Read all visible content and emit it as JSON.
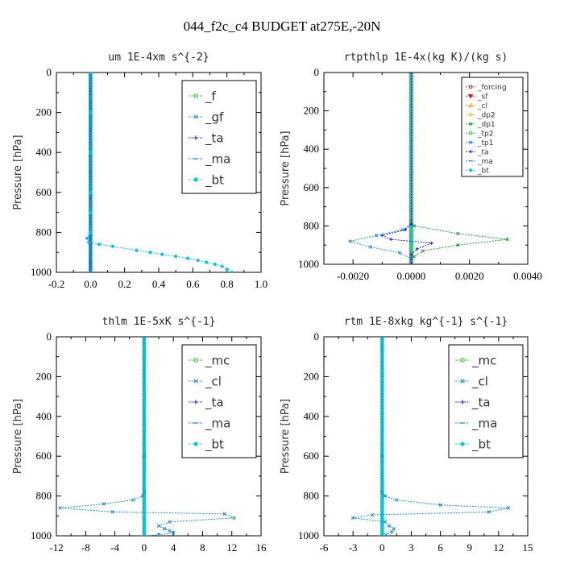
{
  "title": "044_f2c_c4  BUDGET at275E,-20N",
  "colors": {
    "forcing": "#d62020",
    "sf": "#d62020",
    "cl_orange": "#f0a020",
    "dp2": "#e0c000",
    "dp1": "#20a040",
    "tp2": "#30c030",
    "tp1": "#1e90d0",
    "ta": "#2020e0",
    "ma": "#2090c0",
    "bt": "#00c8e0",
    "f": "#30c030",
    "gf": "#1e90d0",
    "mc": "#30c030",
    "cl_blue": "#1e90d0"
  },
  "chart_data": [
    {
      "type": "line",
      "title": "um  1E-4xm s^{-2}",
      "ylabel": "Pressure [hPa]",
      "xlim": [
        -0.2,
        1.0
      ],
      "ylim": [
        1000,
        0
      ],
      "xticks": [
        "-0.2",
        "0.0",
        "0.2",
        "0.4",
        "0.6",
        "0.8",
        "1.0"
      ],
      "xtick_values": [
        -0.2,
        0.0,
        0.2,
        0.4,
        0.6,
        0.8,
        1.0
      ],
      "yticks": [
        "0",
        "200",
        "400",
        "600",
        "800",
        "1000"
      ],
      "ytick_values": [
        0,
        200,
        400,
        600,
        800,
        1000
      ],
      "legend_position": "top-right",
      "legend_size": "large",
      "series": [
        {
          "name": "_f",
          "color_key": "f",
          "marker": "circle",
          "points": "zeros"
        },
        {
          "name": "_gf",
          "color_key": "gf",
          "marker": "x",
          "points": "zeros"
        },
        {
          "name": "_ta",
          "color_key": "ta",
          "marker": "plus",
          "points": "zeros"
        },
        {
          "name": "_ma",
          "color_key": "ma",
          "marker": "dash",
          "points": "zeros"
        },
        {
          "name": "_bt",
          "color_key": "bt",
          "marker": "diamond",
          "x": [
            0,
            0,
            0,
            0,
            0,
            0,
            -0.02,
            -0.01,
            0.05,
            0.13,
            0.27,
            0.35,
            0.42,
            0.5,
            0.57,
            0.63,
            0.68,
            0.73,
            0.77,
            0.8,
            0.83
          ],
          "y": [
            0,
            200,
            400,
            600,
            700,
            800,
            830,
            850,
            860,
            870,
            890,
            900,
            910,
            920,
            930,
            940,
            950,
            960,
            970,
            985,
            1000
          ]
        }
      ]
    },
    {
      "type": "line",
      "title": "rtpthlp  1E-4x(kg K)/(kg s)",
      "ylabel": "Pressure [hPa]",
      "xlim": [
        -0.003,
        0.004
      ],
      "ylim": [
        1000,
        0
      ],
      "xticks": [
        "-0.0020",
        "0.0000",
        "0.0020",
        "0.0040"
      ],
      "xtick_values": [
        -0.002,
        0.0,
        0.002,
        0.004
      ],
      "yticks": [
        "0",
        "200",
        "400",
        "600",
        "800",
        "1000"
      ],
      "ytick_values": [
        0,
        200,
        400,
        600,
        800,
        1000
      ],
      "legend_position": "top-right",
      "legend_size": "small",
      "series": [
        {
          "name": "_forcing",
          "color_key": "forcing",
          "marker": "circle",
          "points": "zeros"
        },
        {
          "name": "_sf",
          "color_key": "sf",
          "marker": "tri-down",
          "points": "zeros"
        },
        {
          "name": "_cl",
          "color_key": "cl_orange",
          "marker": "tri-up",
          "points": "zeros"
        },
        {
          "name": "_dp2",
          "color_key": "dp2",
          "marker": "circle",
          "points": "zeros"
        },
        {
          "name": "_dp1",
          "color_key": "dp1",
          "marker": "x",
          "x": [
            0,
            0,
            0.0001,
            0.0016,
            0.0033,
            0.0016,
            0.0004,
            0.0001,
            0,
            0
          ],
          "y": [
            0,
            780,
            800,
            840,
            870,
            900,
            930,
            960,
            980,
            1000
          ]
        },
        {
          "name": "_tp2",
          "color_key": "tp2",
          "marker": "circle",
          "points": "zeros"
        },
        {
          "name": "_tp1",
          "color_key": "tp1",
          "marker": "x",
          "x": [
            0,
            0,
            -0.0003,
            -0.0012,
            -0.0021,
            -0.0014,
            -0.0004,
            0,
            0
          ],
          "y": [
            0,
            790,
            820,
            850,
            880,
            910,
            940,
            970,
            1000
          ]
        },
        {
          "name": "_ta",
          "color_key": "ta",
          "marker": "plus",
          "x": [
            0,
            0,
            -0.0002,
            -0.001,
            -0.0007,
            0.0007,
            0.0002,
            0,
            0
          ],
          "y": [
            0,
            790,
            820,
            850,
            870,
            890,
            920,
            950,
            1000
          ]
        },
        {
          "name": "_ma",
          "color_key": "ma",
          "marker": "dash",
          "points": "zeros"
        },
        {
          "name": "_bt",
          "color_key": "bt",
          "marker": "diamond",
          "points": "zeros"
        }
      ]
    },
    {
      "type": "line",
      "title": "thlm  1E-5xK s^{-1}",
      "ylabel": "Pressure [hPa]",
      "xlim": [
        -12,
        16
      ],
      "ylim": [
        1000,
        0
      ],
      "xticks": [
        "-12",
        "-8",
        "-4",
        "0",
        "4",
        "8",
        "12",
        "16"
      ],
      "xtick_values": [
        -12,
        -8,
        -4,
        0,
        4,
        8,
        12,
        16
      ],
      "yticks": [
        "0",
        "200",
        "400",
        "600",
        "800",
        "1000"
      ],
      "ytick_values": [
        0,
        200,
        400,
        600,
        800,
        1000
      ],
      "legend_position": "top-right",
      "legend_size": "large",
      "series": [
        {
          "name": "_mc",
          "color_key": "mc",
          "marker": "circle",
          "points": "zeros"
        },
        {
          "name": "_cl",
          "color_key": "cl_blue",
          "marker": "x",
          "x": [
            0,
            0,
            0,
            -0.2,
            -1.5,
            -5.5,
            -11.5,
            -4.3,
            11.0,
            12.3,
            3.5,
            2.0,
            2.8,
            3.5,
            4.0,
            2.0,
            0
          ],
          "y": [
            0,
            600,
            780,
            800,
            820,
            840,
            860,
            880,
            890,
            910,
            930,
            950,
            965,
            975,
            985,
            995,
            1000
          ]
        },
        {
          "name": "_ta",
          "color_key": "ta",
          "marker": "plus",
          "points": "zeros"
        },
        {
          "name": "_ma",
          "color_key": "ma",
          "marker": "dash",
          "points": "zeros"
        },
        {
          "name": "_bt",
          "color_key": "bt",
          "marker": "diamond",
          "points": "zeros"
        }
      ]
    },
    {
      "type": "line",
      "title": "rtm  1E-8xkg kg^{-1} s^{-1}",
      "ylabel": "Pressure [hPa]",
      "xlim": [
        -6,
        15
      ],
      "ylim": [
        1000,
        0
      ],
      "xticks": [
        "-6",
        "-3",
        "0",
        "3",
        "6",
        "9",
        "12",
        "15"
      ],
      "xtick_values": [
        -6,
        -3,
        0,
        3,
        6,
        9,
        12,
        15
      ],
      "yticks": [
        "0",
        "200",
        "400",
        "600",
        "800",
        "1000"
      ],
      "ytick_values": [
        0,
        200,
        400,
        600,
        800,
        1000
      ],
      "legend_position": "top-right",
      "legend_size": "large",
      "series": [
        {
          "name": "_mc",
          "color_key": "mc",
          "marker": "circle",
          "points": "zeros"
        },
        {
          "name": "_cl",
          "color_key": "cl_blue",
          "marker": "x",
          "x": [
            0,
            0,
            0,
            0.3,
            1.5,
            6.0,
            13.0,
            11.0,
            -1.0,
            -3.0,
            0.3,
            0.7,
            1.2,
            1.0,
            0.4,
            0
          ],
          "y": [
            0,
            600,
            780,
            800,
            820,
            845,
            860,
            880,
            895,
            910,
            930,
            950,
            965,
            980,
            995,
            1000
          ]
        },
        {
          "name": "_ta",
          "color_key": "ta",
          "marker": "plus",
          "points": "zeros"
        },
        {
          "name": "_ma",
          "color_key": "ma",
          "marker": "dash",
          "points": "zeros"
        },
        {
          "name": "_bt",
          "color_key": "bt",
          "marker": "diamond",
          "points": "zeros"
        }
      ]
    }
  ]
}
